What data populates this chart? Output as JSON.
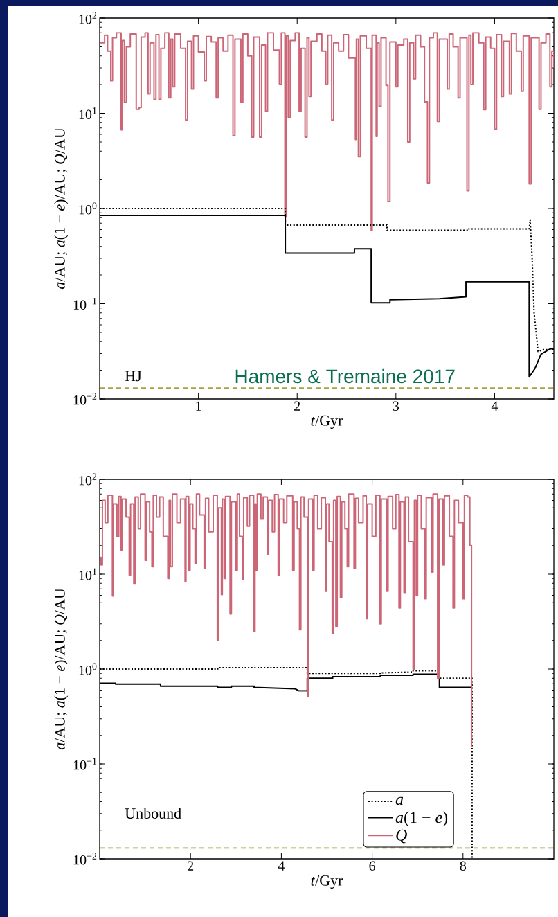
{
  "chart_data": [
    {
      "type": "line",
      "xlabel": "*t*/Gyr",
      "ylabel": "*a*/AU; *a*(1 − *e*)/AU; *Q*/AU",
      "log": "y",
      "xlim": [
        0,
        4.6
      ],
      "ylim": [
        0.01,
        100
      ],
      "xticks": [
        1,
        2,
        3,
        4
      ],
      "yticks": [
        {
          "value": 0.01,
          "label": "10$^{−2}$"
        },
        {
          "value": 0.1,
          "label": "10$^{−1}$"
        },
        {
          "value": 1,
          "label": "10$^{0}$"
        },
        {
          "value": 10,
          "label": "10$^{1}$"
        },
        {
          "value": 100,
          "label": "10$^{2}$"
        }
      ],
      "annotations": [
        "HJ",
        "Hamers & Tremaine 2017"
      ],
      "ref_lines": [
        {
          "axis": "y",
          "value": 0.013,
          "color": "#a8a23c",
          "line_style": "dashed"
        }
      ],
      "series": [
        {
          "type": "step",
          "color": "#cc6677",
          "line_style": "solid",
          "x": [
            0.0,
            0.05,
            0.08,
            0.112,
            0.13,
            0.17,
            0.217,
            0.23,
            0.25,
            0.27,
            0.31,
            0.37,
            0.4,
            0.42,
            0.46,
            0.49,
            0.51,
            0.55,
            0.57,
            0.6,
            0.62,
            0.66,
            0.7,
            0.72,
            0.74,
            0.76,
            0.82,
            0.87,
            0.89,
            0.93,
            0.95,
            1.0,
            1.06,
            1.08,
            1.13,
            1.18,
            1.2,
            1.25,
            1.3,
            1.35,
            1.37,
            1.43,
            1.45,
            1.5,
            1.54,
            1.56,
            1.62,
            1.64,
            1.68,
            1.7,
            1.76,
            1.82,
            1.84,
            1.876,
            1.89,
            1.91,
            1.93,
            1.98,
            2.02,
            2.04,
            2.08,
            2.1,
            2.12,
            2.14,
            2.2,
            2.25,
            2.29,
            2.31,
            2.35,
            2.37,
            2.42,
            2.47,
            2.52,
            2.59,
            2.6,
            2.62,
            2.64,
            2.7,
            2.75,
            2.76,
            2.8,
            2.81,
            2.83,
            2.85,
            2.9,
            2.92,
            2.94,
            3.0,
            3.02,
            3.08,
            3.12,
            3.14,
            3.18,
            3.2,
            3.25,
            3.29,
            3.32,
            3.34,
            3.38,
            3.42,
            3.44,
            3.52,
            3.54,
            3.58,
            3.63,
            3.65,
            3.72,
            3.74,
            3.76,
            3.78,
            3.84,
            3.89,
            3.91,
            3.96,
            4.0,
            4.02,
            4.07,
            4.09,
            4.15,
            4.17,
            4.22,
            4.27,
            4.29,
            4.35,
            4.37,
            4.45,
            4.47,
            4.52,
            4.56,
            4.58,
            4.6
          ],
          "values": [
            55,
            66,
            45,
            22,
            62,
            70,
            6.7,
            58,
            13,
            50,
            68,
            11,
            11.5,
            63,
            70,
            16,
            55,
            14,
            67,
            14,
            48,
            70,
            14.5,
            60,
            19,
            68,
            48,
            8.5,
            57,
            18,
            65,
            44,
            22,
            64,
            56,
            14.5,
            62,
            45,
            66,
            5.8,
            60,
            13,
            68,
            40,
            5.6,
            63,
            5.6,
            52,
            10.5,
            70,
            46,
            20,
            70,
            0.82,
            65,
            9,
            58,
            70,
            10.5,
            48,
            5.6,
            62,
            15,
            57,
            68,
            45,
            20,
            66,
            8.5,
            55,
            45,
            67,
            38,
            5.3,
            60,
            3.5,
            65,
            48,
            0.59,
            66,
            5.7,
            55,
            11.8,
            62,
            19.6,
            1.18,
            56,
            19,
            52,
            60,
            5.0,
            55,
            23,
            66,
            50,
            13.2,
            1.86,
            62,
            70,
            8.2,
            60,
            18,
            68,
            50,
            14.5,
            62,
            1.53,
            66,
            20,
            70,
            55,
            10.9,
            63,
            48,
            6.8,
            67,
            15,
            57,
            16,
            69,
            45,
            17,
            65,
            1.81,
            62,
            11,
            55,
            68,
            19,
            45,
            30
          ]
        },
        {
          "color": "#000000",
          "line_style": "dotted",
          "x": [
            0,
            1.88,
            1.88,
            2.91,
            2.91,
            3.73,
            3.73,
            4.35,
            4.36,
            4.38,
            4.4,
            4.44,
            4.5,
            4.6
          ],
          "values": [
            1.0,
            1.0,
            0.67,
            0.67,
            0.59,
            0.59,
            0.61,
            0.61,
            0.76,
            0.3,
            0.08,
            0.0315,
            0.033,
            0.033
          ]
        },
        {
          "color": "#000000",
          "line_style": "solid",
          "x": [
            0,
            1.88,
            1.88,
            2.58,
            2.58,
            2.75,
            2.75,
            2.94,
            2.94,
            3.44,
            3.71,
            3.71,
            4.35,
            4.35,
            4.41,
            4.47,
            4.56,
            4.6
          ],
          "values": [
            0.845,
            0.845,
            0.34,
            0.34,
            0.377,
            0.377,
            0.102,
            0.102,
            0.11,
            0.113,
            0.118,
            0.17,
            0.17,
            0.017,
            0.021,
            0.0295,
            0.0335,
            0.034
          ]
        }
      ]
    },
    {
      "type": "line",
      "xlabel": "*t*/Gyr",
      "ylabel": "*a*/AU; *a*(1 − *e*)/AU; *Q*/AU",
      "log": "y",
      "xlim": [
        0,
        10
      ],
      "ylim": [
        0.01,
        100
      ],
      "xticks": [
        2,
        4,
        6,
        8
      ],
      "yticks": [
        {
          "value": 0.01,
          "label": "10$^{−2}$"
        },
        {
          "value": 0.1,
          "label": "10$^{−1}$"
        },
        {
          "value": 1,
          "label": "10$^{0}$"
        },
        {
          "value": 10,
          "label": "10$^{1}$"
        },
        {
          "value": 100,
          "label": "10$^{2}$"
        }
      ],
      "annotations": [
        "Unbound"
      ],
      "legend": "bottom right",
      "ref_lines": [
        {
          "axis": "y",
          "value": 0.013,
          "color": "#a8a23c",
          "line_style": "dashed"
        }
      ],
      "series": [
        {
          "name": "*a*",
          "color": "#000000",
          "line_style": "dotted",
          "x": [
            0,
            2.6,
            2.6,
            4.57,
            4.57,
            6.18,
            6.18,
            6.9,
            6.9,
            7.48,
            7.48,
            8.2,
            8.2
          ],
          "values": [
            1.0,
            1.0,
            1.035,
            1.035,
            0.9,
            0.9,
            0.91,
            0.93,
            0.96,
            0.96,
            0.8,
            0.8,
            0.01
          ]
        },
        {
          "name": "*a*(1 − *e*)",
          "color": "#000000",
          "line_style": "solid",
          "x": [
            0,
            0.35,
            0.35,
            1.34,
            1.34,
            2.6,
            2.6,
            2.9,
            2.9,
            3.4,
            3.4,
            4.3,
            4.38,
            4.57,
            4.57,
            5.13,
            5.13,
            6.18,
            6.18,
            6.9,
            6.9,
            7.48,
            7.48,
            8.2
          ],
          "values": [
            0.71,
            0.71,
            0.695,
            0.695,
            0.66,
            0.66,
            0.64,
            0.64,
            0.66,
            0.66,
            0.64,
            0.62,
            0.59,
            0.59,
            0.8,
            0.8,
            0.83,
            0.83,
            0.86,
            0.86,
            0.88,
            0.88,
            0.64,
            0.64
          ]
        },
        {
          "name": "*Q*",
          "type": "step",
          "color": "#cc6677",
          "line_style": "solid",
          "x": [
            0.0,
            0.03,
            0.06,
            0.12,
            0.18,
            0.28,
            0.3,
            0.38,
            0.42,
            0.47,
            0.5,
            0.58,
            0.65,
            0.68,
            0.75,
            0.78,
            0.85,
            0.9,
            1.0,
            1.03,
            1.1,
            1.15,
            1.18,
            1.25,
            1.32,
            1.4,
            1.5,
            1.53,
            1.56,
            1.6,
            1.7,
            1.78,
            1.88,
            1.9,
            1.96,
            1.99,
            2.05,
            2.1,
            2.13,
            2.2,
            2.3,
            2.33,
            2.4,
            2.5,
            2.59,
            2.61,
            2.68,
            2.7,
            2.74,
            2.77,
            2.87,
            2.9,
            3.0,
            3.03,
            3.08,
            3.14,
            3.17,
            3.25,
            3.3,
            3.39,
            3.42,
            3.44,
            3.47,
            3.55,
            3.6,
            3.69,
            3.72,
            3.8,
            3.85,
            3.93,
            3.96,
            4.05,
            4.12,
            4.25,
            4.28,
            4.35,
            4.4,
            4.43,
            4.5,
            4.58,
            4.6,
            4.69,
            4.72,
            4.8,
            4.88,
            4.97,
            5.0,
            5.05,
            5.12,
            5.15,
            5.2,
            5.23,
            5.3,
            5.33,
            5.4,
            5.45,
            5.48,
            5.6,
            5.63,
            5.7,
            5.8,
            5.87,
            5.9,
            6.0,
            6.08,
            6.17,
            6.2,
            6.32,
            6.35,
            6.45,
            6.52,
            6.59,
            6.62,
            6.7,
            6.73,
            6.8,
            6.9,
            6.93,
            6.97,
            7.0,
            7.08,
            7.16,
            7.19,
            7.31,
            7.34,
            7.44,
            7.47,
            7.56,
            7.59,
            7.7,
            7.78,
            7.81,
            7.9,
            8.0,
            8.03,
            8.1,
            8.15,
            8.19
          ],
          "values": [
            15,
            12.5,
            60,
            35,
            68,
            5.9,
            55,
            25,
            66,
            18,
            62,
            40,
            9.8,
            55,
            8,
            65,
            30,
            70,
            14,
            58,
            28,
            12,
            68,
            40,
            65,
            25,
            9,
            60,
            12,
            70,
            35,
            62,
            8.3,
            66,
            11,
            55,
            30,
            13,
            70,
            42,
            11.5,
            63,
            28,
            68,
            2.0,
            50,
            6.1,
            62,
            9,
            66,
            3.8,
            58,
            11,
            70,
            25,
            8.8,
            64,
            32,
            68,
            2.5,
            55,
            11,
            70,
            38,
            65,
            16,
            60,
            28,
            69,
            9.8,
            62,
            35,
            67,
            11,
            58,
            30,
            2.6,
            65,
            40,
            0.51,
            62,
            11,
            68,
            30,
            64,
            6.6,
            55,
            22,
            2.4,
            60,
            2.8,
            66,
            5.7,
            58,
            30,
            12,
            70,
            11.5,
            63,
            35,
            67,
            3.4,
            55,
            25,
            68,
            3.0,
            62,
            6.6,
            66,
            30,
            69,
            4.4,
            58,
            6.4,
            65,
            22,
            1.0,
            60,
            6.0,
            68,
            30,
            5.5,
            64,
            10.5,
            70,
            0.8,
            62,
            12.5,
            67,
            25,
            4.4,
            60,
            35,
            5.5,
            68,
            65,
            20,
            0.15
          ]
        }
      ]
    }
  ]
}
